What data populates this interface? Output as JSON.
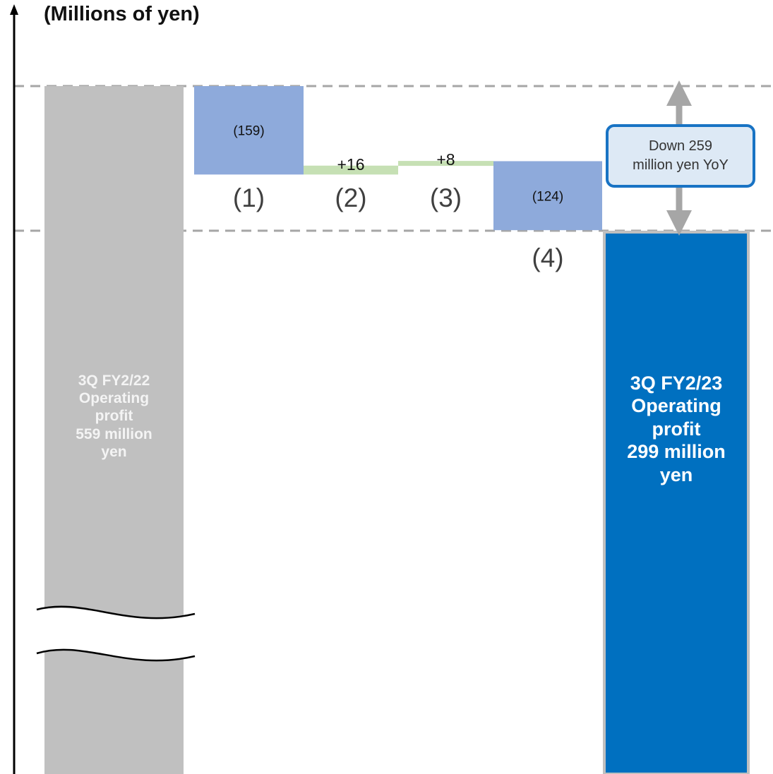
{
  "unit_label": "(Millions of yen)",
  "callout": {
    "line1": "Down 259",
    "line2": "million yen YoY"
  },
  "colors": {
    "start_bar": "#c0c0c0",
    "end_bar": "#0070c0",
    "decrease": "#8eaadb",
    "increase": "#c6e0b4",
    "callout_border": "#1873c4",
    "callout_fill": "#dde9f5",
    "guide_line": "#a6a6a6"
  },
  "chart_data": {
    "type": "bar",
    "subtype": "waterfall",
    "ylabel": "(Millions of yen)",
    "axis_break": true,
    "start": {
      "lines": [
        "3Q FY2/22",
        "Operating",
        "profit",
        "559 million",
        "yen"
      ],
      "value": 559
    },
    "end": {
      "lines": [
        "3Q FY2/23",
        "Operating",
        "profit",
        "299 million",
        "yen"
      ],
      "value": 299
    },
    "steps": [
      {
        "category": "(1)",
        "label": "(159)",
        "value": -159
      },
      {
        "category": "(2)",
        "label": "+16",
        "value": 16
      },
      {
        "category": "(3)",
        "label": "+8",
        "value": 8
      },
      {
        "category": "(4)",
        "label": "(124)",
        "value": -124
      }
    ]
  }
}
